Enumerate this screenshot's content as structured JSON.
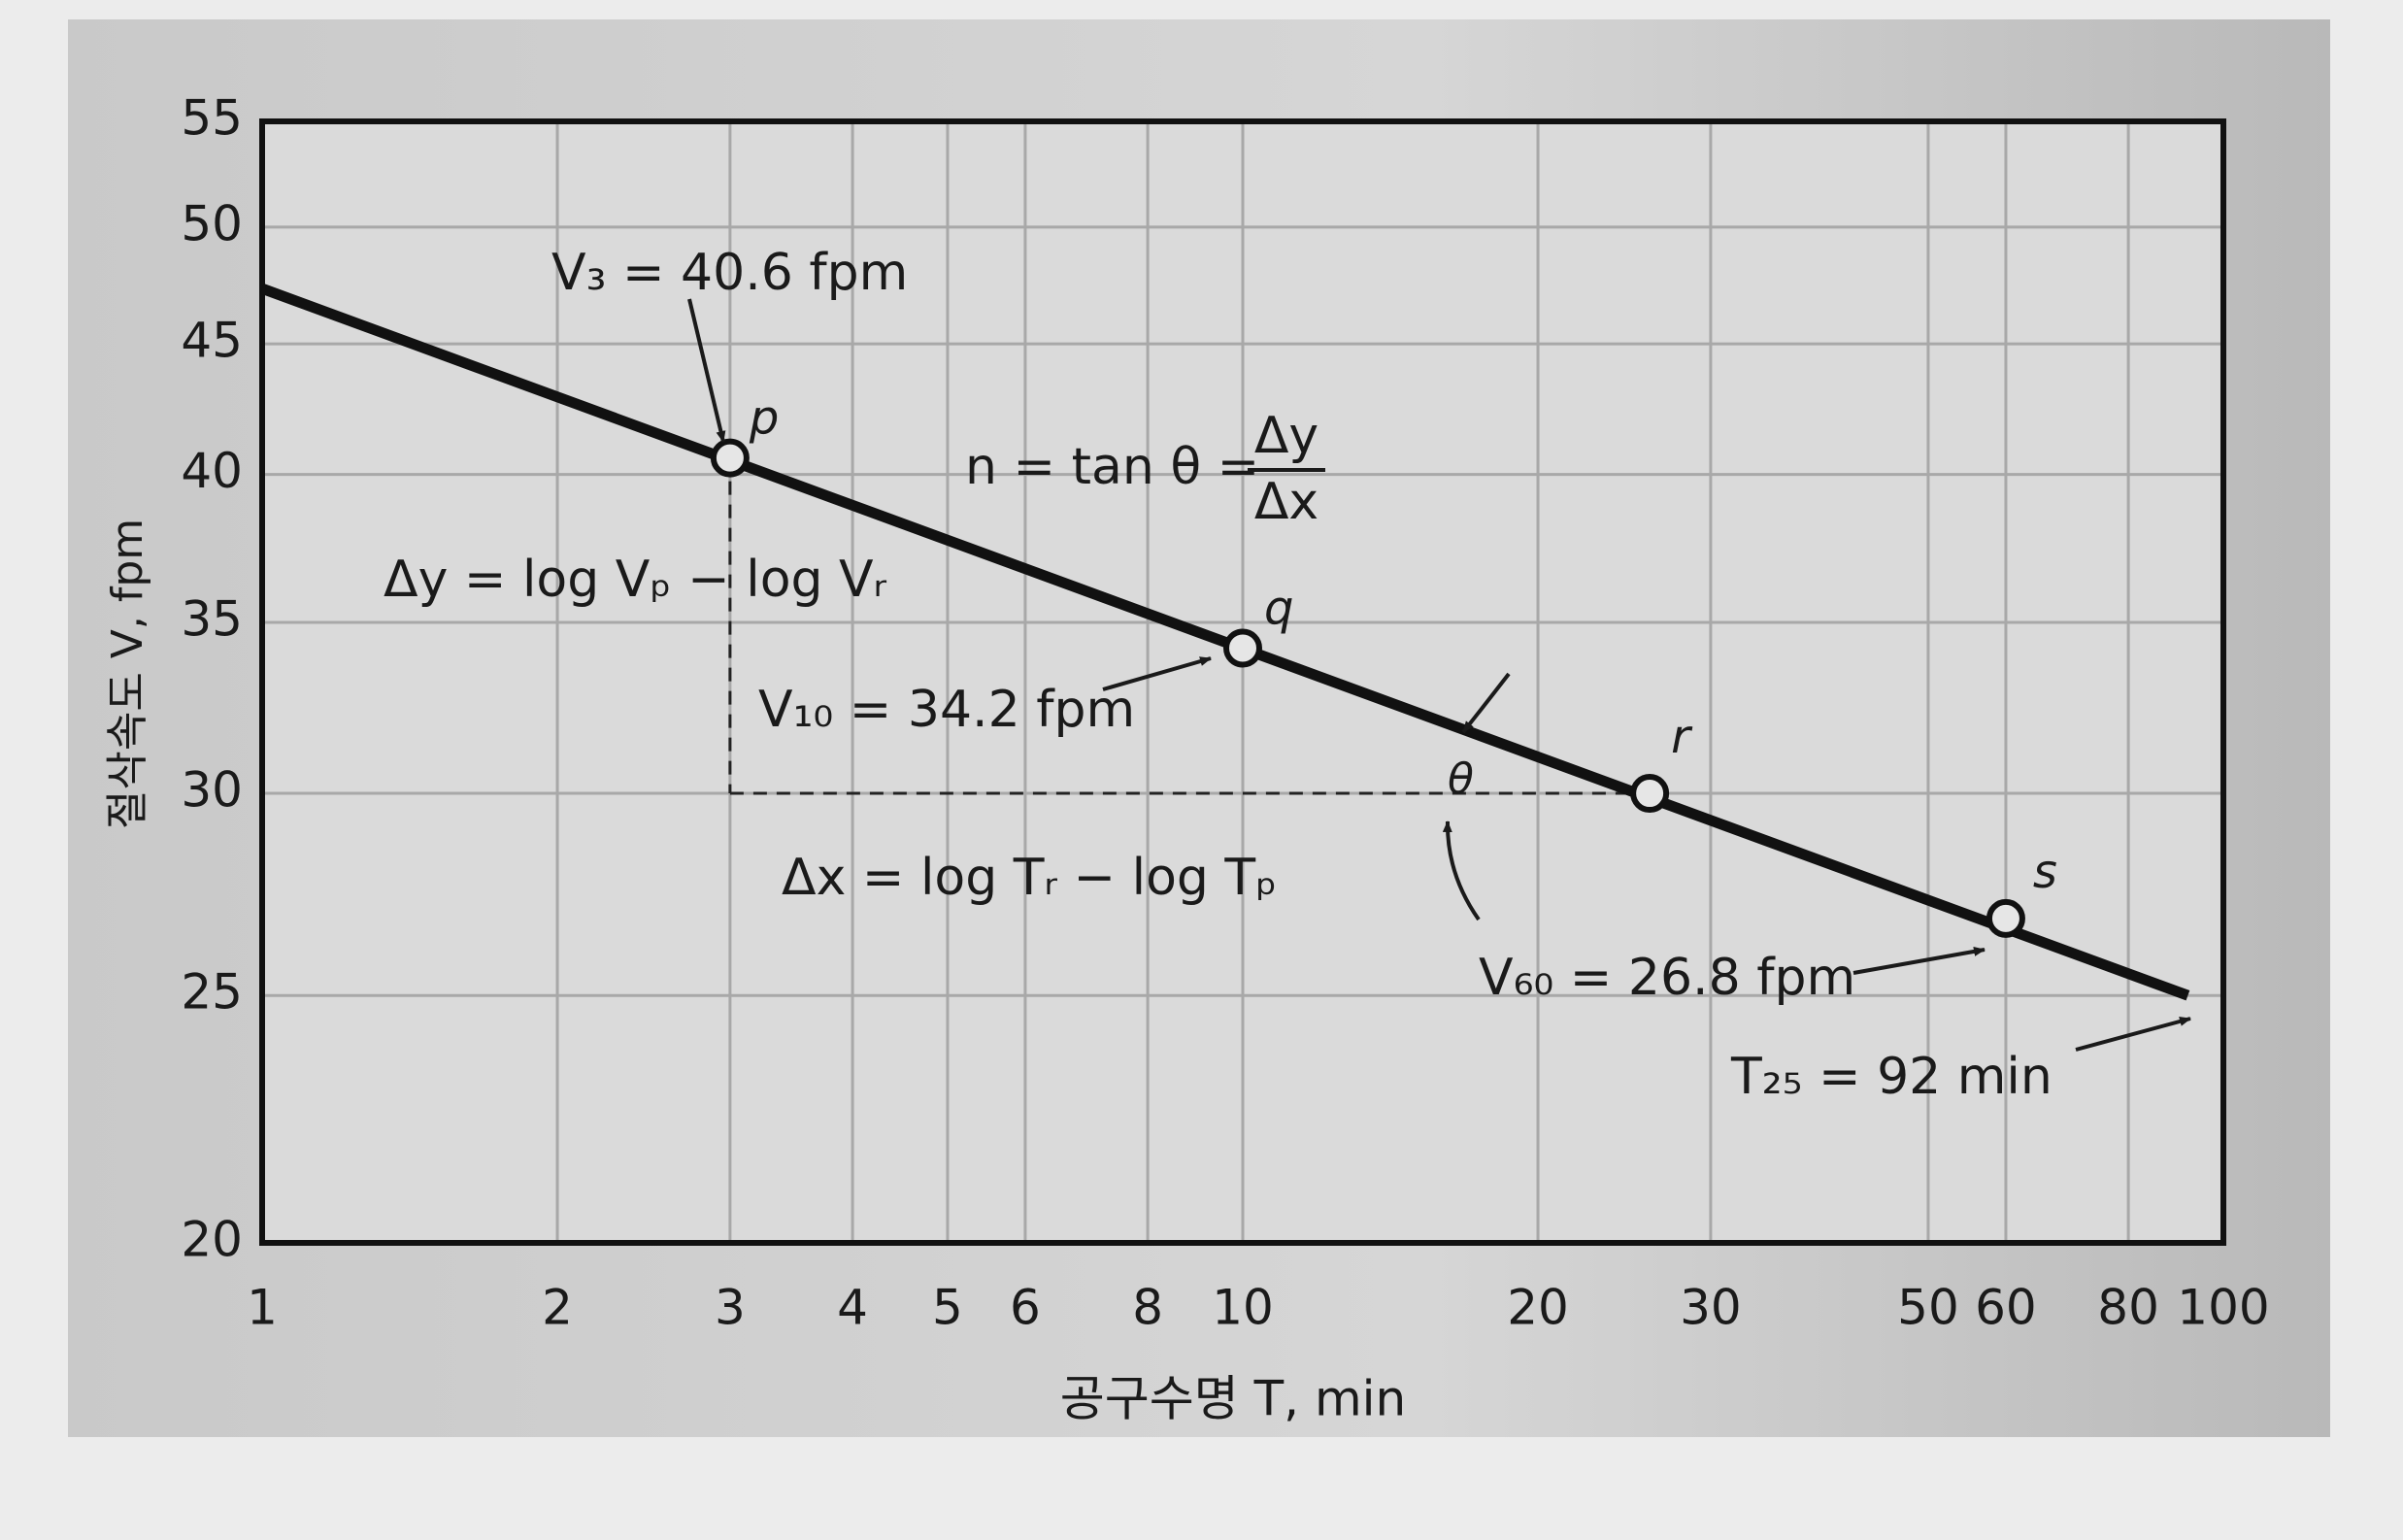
{
  "chart_data": {
    "type": "line",
    "x_label": "공구수명 T, min",
    "y_label": "절삭속도 V, fpm",
    "log_x": true,
    "log_y": true,
    "grid": true,
    "xlim": [
      1,
      100
    ],
    "ylim": [
      20,
      55
    ],
    "xticks": [
      1,
      2,
      3,
      4,
      5,
      6,
      8,
      10,
      20,
      30,
      50,
      60,
      80,
      100
    ],
    "yticks": [
      20,
      25,
      30,
      35,
      40,
      45,
      50,
      55
    ],
    "series": [
      {
        "name": "tool-life line",
        "color": "#111111",
        "x": [
          1,
          92
        ],
        "values": [
          47.3,
          25
        ]
      },
      {
        "name": "points",
        "color": "#111111",
        "x": [
          3,
          10,
          26,
          60
        ],
        "values": [
          40.6,
          34.2,
          30,
          26.8
        ],
        "labels": [
          "p",
          "q",
          "r",
          "s"
        ]
      }
    ],
    "formula": {
      "lhs": "n = tan θ =",
      "numerator": "Δy",
      "denominator": "Δx"
    },
    "annotations": [
      "V₃ = 40.6 fpm",
      "Δy = log Vₚ − log Vᵣ",
      "V₁₀ = 34.2 fpm",
      "Δx = log Tᵣ − log Tₚ",
      "V₆₀ = 26.8 fpm",
      "T₂₅ = 92 min",
      "θ"
    ]
  }
}
